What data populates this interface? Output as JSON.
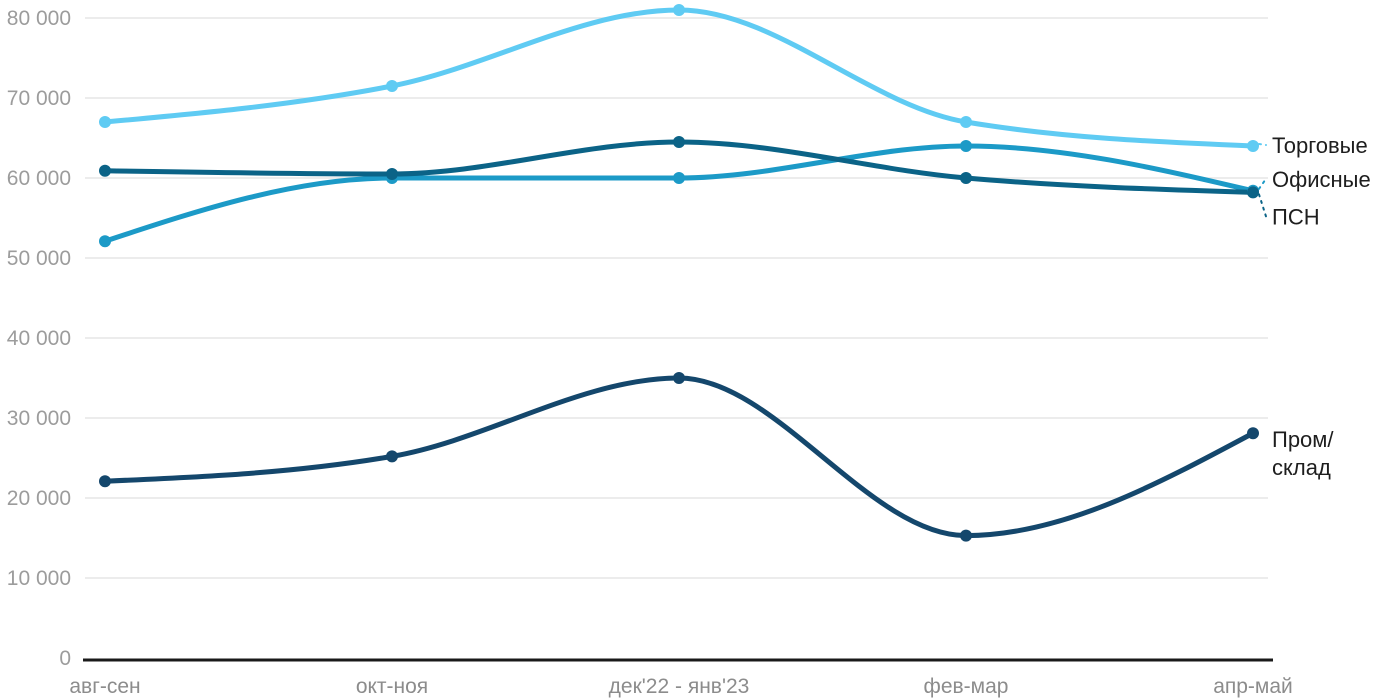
{
  "chart_data": {
    "type": "line",
    "title": "",
    "x_labels": [
      "авг-сен",
      "окт-ноя",
      "дек'22 - янв'23",
      "фев-мар",
      "апр-май"
    ],
    "y_ticks": [
      0,
      10000,
      20000,
      30000,
      40000,
      50000,
      60000,
      70000,
      80000
    ],
    "y_tick_labels": [
      "0",
      "10 000",
      "20 000",
      "30 000",
      "40 000",
      "50 000",
      "60 000",
      "70 000",
      "80 000"
    ],
    "ylim": [
      0,
      82000
    ],
    "grid": "horizontal-only",
    "legend_position": "direct-labels-right",
    "curve": "monotone",
    "axis_color": "#1a1a1a",
    "grid_color": "#e6e6e6",
    "y_tick_label_color": "#9c9c9c",
    "x_tick_label_color": "#8c8c8c",
    "series_label_color": "#1e1e1e",
    "series": [
      {
        "name": "Торговые",
        "key": "torgovye",
        "color": "#5FCBF3",
        "values": [
          67000,
          71500,
          81000,
          67000,
          64000
        ]
      },
      {
        "name": "Офисные",
        "key": "ofisnye",
        "color": "#1C9AC7",
        "values": [
          52100,
          60000,
          60000,
          64000,
          58400
        ]
      },
      {
        "name": "ПСН",
        "key": "psn",
        "color": "#0B6387",
        "values": [
          60900,
          60500,
          64500,
          60000,
          58200
        ]
      },
      {
        "name": "Пром/склад",
        "key": "prom-sklad",
        "color": "#14476C",
        "values": [
          22100,
          25200,
          35000,
          15300,
          28100
        ],
        "label_lines": [
          "Пром/",
          "склад"
        ]
      }
    ]
  }
}
